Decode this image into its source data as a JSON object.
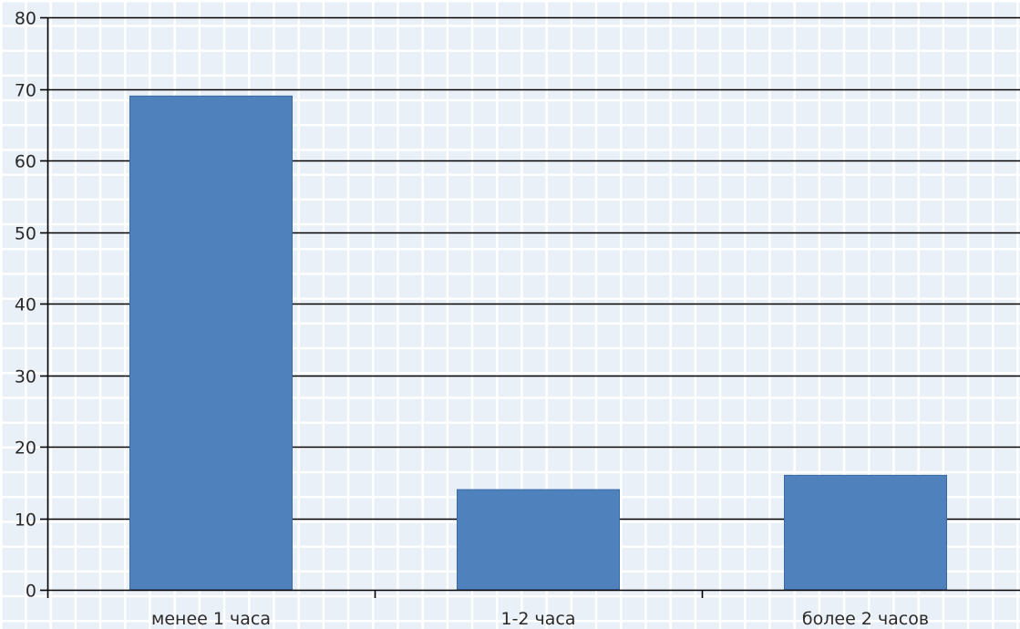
{
  "chart_data": {
    "type": "bar",
    "categories": [
      "менее 1 часа",
      "1-2 часа",
      "более 2 часов"
    ],
    "values": [
      69,
      14,
      16
    ],
    "title": "",
    "xlabel": "",
    "ylabel": "",
    "ylim": [
      0,
      80
    ],
    "yticks": [
      0,
      10,
      20,
      30,
      40,
      50,
      60,
      70,
      80
    ],
    "grid": true,
    "legend": "none",
    "colors": {
      "bar": "#4f81bd",
      "bar_edge": "#3a6aa3",
      "gridline": "#000000",
      "axis": "#000000",
      "background": "#eef3f8",
      "paper_grid": "#ffffff"
    }
  }
}
